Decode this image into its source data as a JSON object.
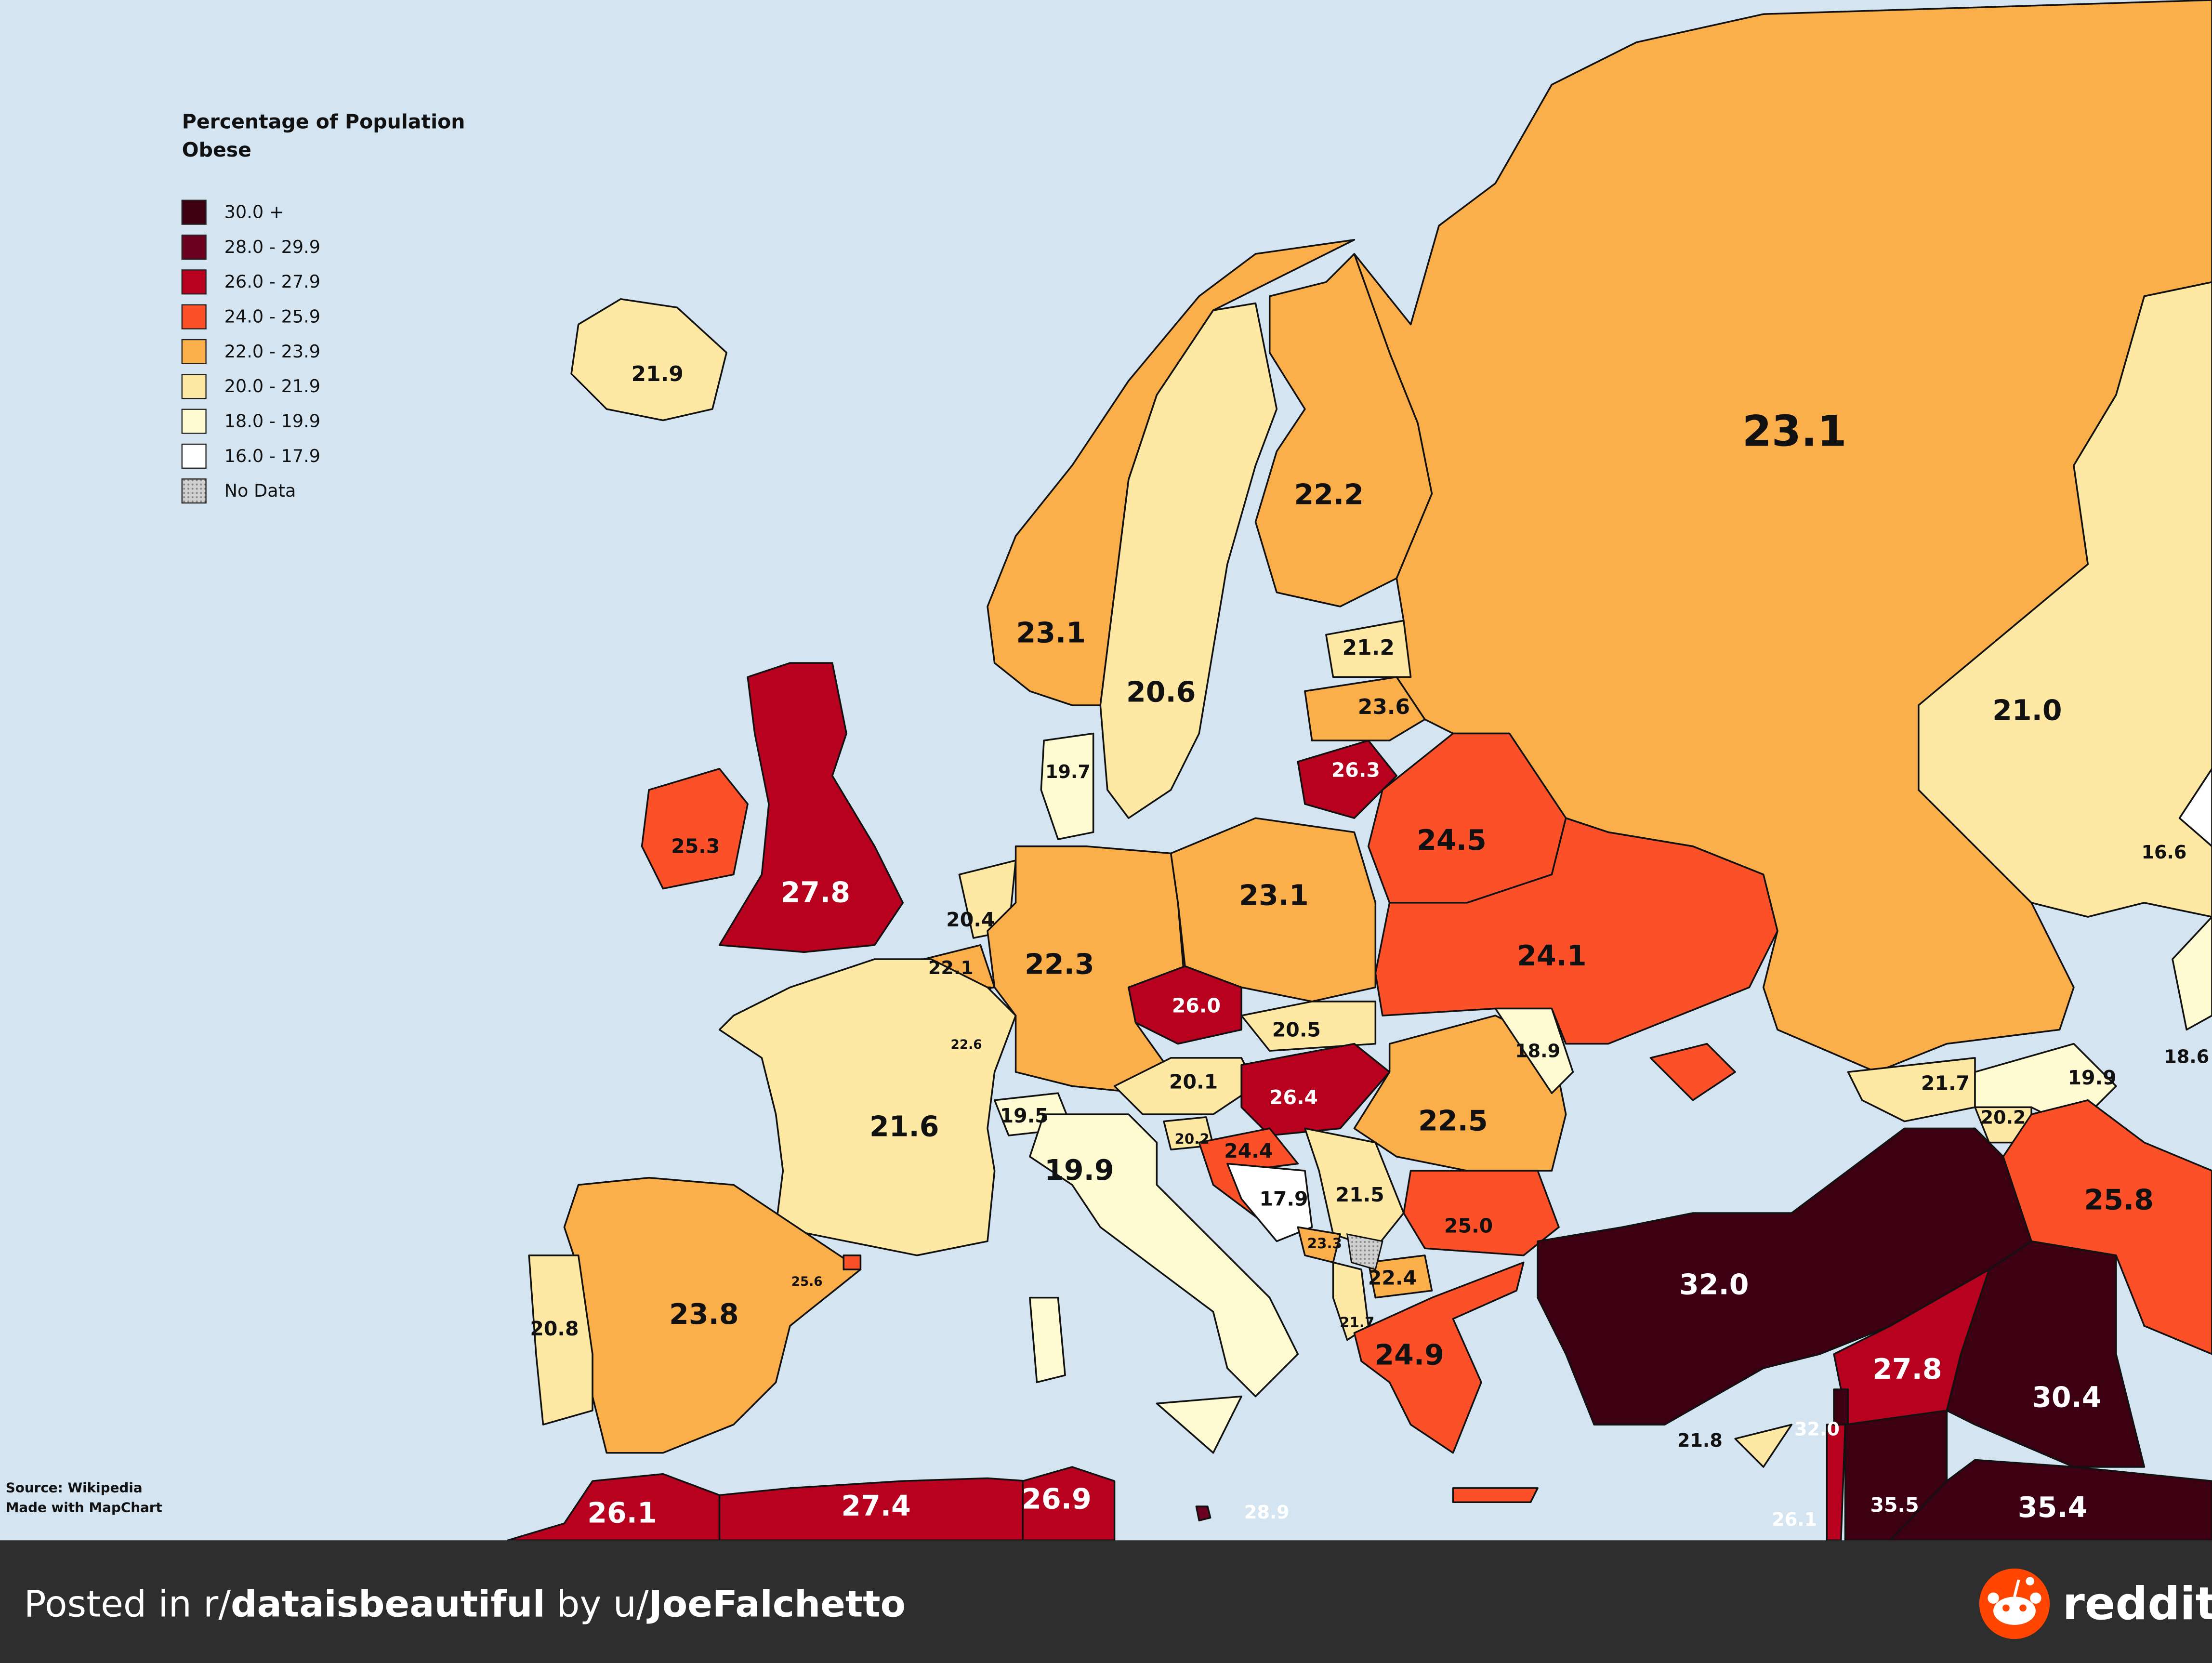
{
  "legend": {
    "title": [
      "Percentage of Population",
      "Obese"
    ],
    "items": [
      {
        "label": "30.0 +",
        "color": "#3d0012"
      },
      {
        "label": "28.0 - 29.9",
        "color": "#6b0020"
      },
      {
        "label": "26.0 - 27.9",
        "color": "#b8001f"
      },
      {
        "label": "24.0 - 25.9",
        "color": "#fc5128"
      },
      {
        "label": "22.0 - 23.9",
        "color": "#fbaf4b"
      },
      {
        "label": "20.0 - 21.9",
        "color": "#fde9a3"
      },
      {
        "label": "18.0 - 19.9",
        "color": "#fefbd2"
      },
      {
        "label": "16.0 - 17.9",
        "color": "#ffffff"
      },
      {
        "label": "No Data",
        "color": "#c8c8c8"
      }
    ]
  },
  "regions": [
    "21.9",
    "23.1",
    "20.6",
    "22.2",
    "23.1",
    "21.2",
    "23.6",
    "26.3",
    "24.5",
    "24.1",
    "21.0",
    "16.6",
    "18.6",
    "25.3",
    "27.8",
    "19.7",
    "20.4",
    "22.1",
    "22.6",
    "22.3",
    "23.1",
    "26.0",
    "20.5",
    "20.1",
    "26.4",
    "22.5",
    "18.9",
    "21.6",
    "19.5",
    "19.9",
    "20.2",
    "24.4",
    "17.9",
    "21.5",
    "25.0",
    "23.3",
    "22.4",
    "21.7",
    "24.9",
    "32.0",
    "21.7",
    "19.9",
    "20.2",
    "25.8",
    "27.8",
    "30.4",
    "21.8",
    "32.0",
    "26.1",
    "35.5",
    "35.4",
    "23.8",
    "20.8",
    "25.6",
    "26.1",
    "27.4",
    "26.9",
    "28.9"
  ],
  "source": [
    "Source: Wikipedia",
    "Made with MapChart"
  ],
  "footer": {
    "prefix": "Posted in r/",
    "subreddit": "dataisbeautiful",
    "by": "by u/",
    "user": "JoeFalchetto",
    "brand": "reddit"
  }
}
